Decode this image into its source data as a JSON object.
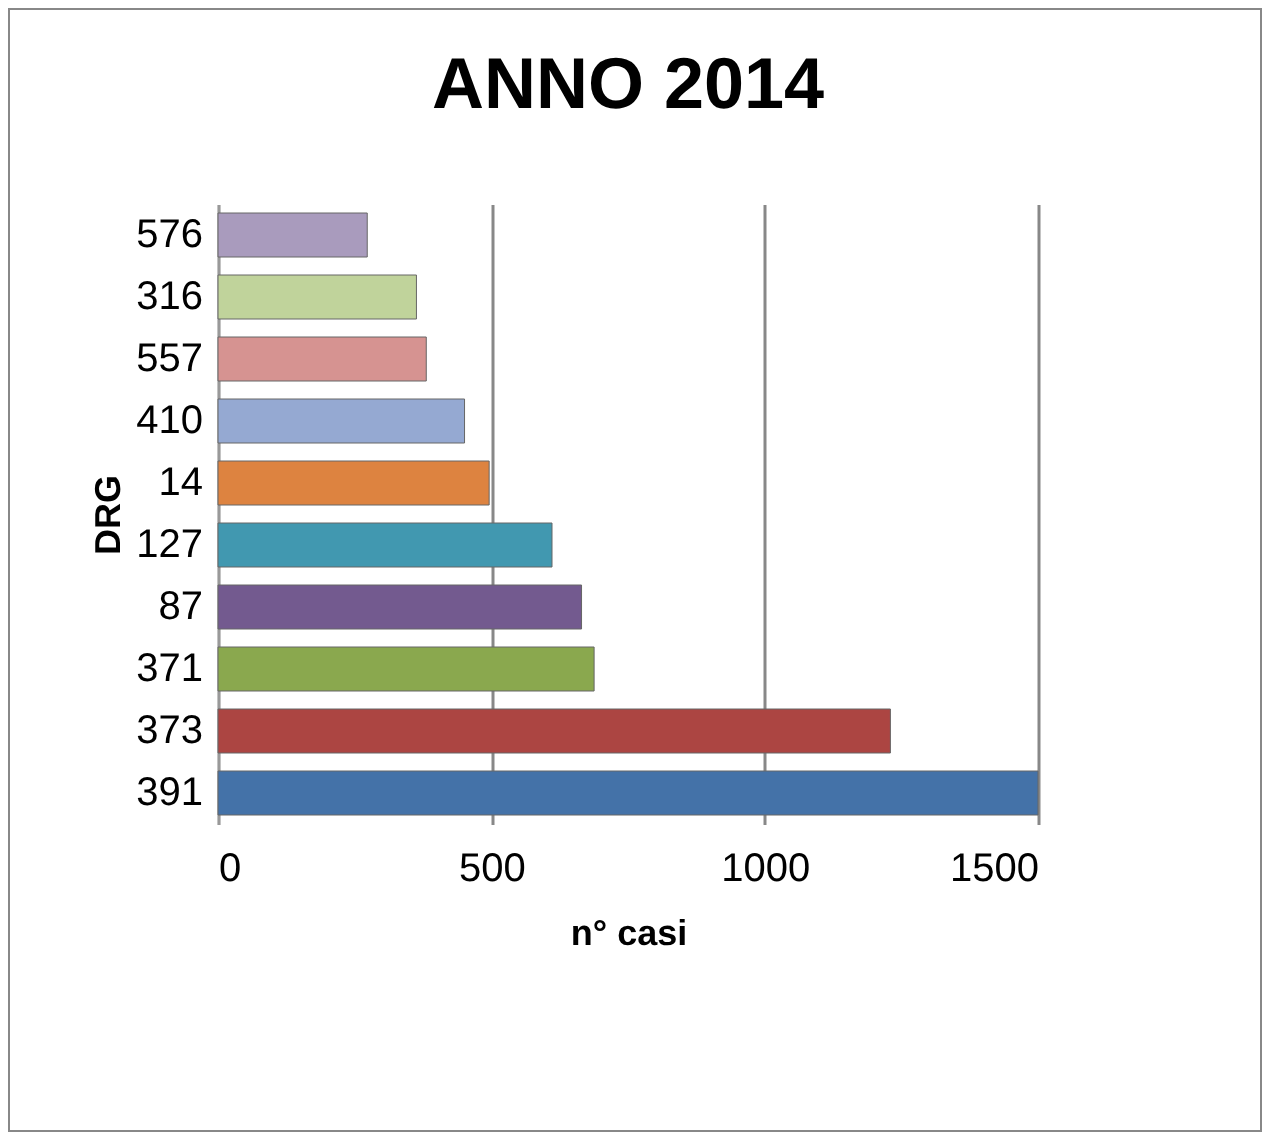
{
  "chart_data": {
    "type": "bar",
    "orientation": "horizontal",
    "title": "ANNO 2014",
    "xlabel": "n° casi",
    "ylabel": "DRG",
    "categories": [
      "576",
      "316",
      "557",
      "410",
      "14",
      "127",
      "87",
      "371",
      "373",
      "391"
    ],
    "values": [
      273,
      363,
      381,
      451,
      496,
      611,
      665,
      688,
      1230,
      1500
    ],
    "colors": [
      "#a99bbd",
      "#c0d39b",
      "#d69391",
      "#95a9d2",
      "#dd8340",
      "#4198b0",
      "#735a8f",
      "#8aa84e",
      "#ac4542",
      "#4472a8"
    ],
    "xlim": [
      0,
      1500
    ],
    "xticks": [
      0,
      500,
      1000,
      1500
    ],
    "grid": "x",
    "legend": false
  }
}
